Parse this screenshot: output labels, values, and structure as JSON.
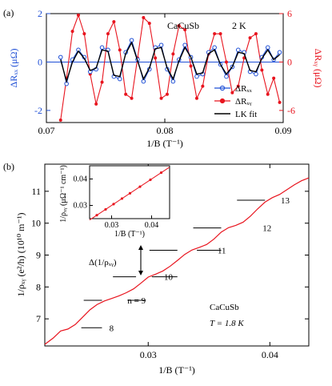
{
  "chart_data": [
    {
      "panel_label": "(a)",
      "type": "line",
      "title": "CaCuSb",
      "annotations": [
        "CaCuSb",
        "2 K"
      ],
      "xlabel": "1/B (T⁻¹)",
      "ylabel_left": "ΔRₓₓ (μΩ)",
      "ylabel_right": "ΔRₓᵧ (μΩ)",
      "xlim": [
        0.07,
        0.09
      ],
      "ylim_left": [
        -2.5,
        2
      ],
      "ylim_right": [
        -7.5,
        6
      ],
      "x_ticks": [
        "0.07",
        "0.08",
        "0.09"
      ],
      "y_ticks_left": [
        "-2",
        "0",
        "2"
      ],
      "y_ticks_right": [
        "-6",
        "0",
        "6"
      ],
      "legend": {
        "placement": "bottom-right",
        "entries": [
          "ΔRₓₓ",
          "ΔRₓᵧ",
          "LK fit"
        ]
      },
      "colors": {
        "rxx": "#1f4fd6",
        "rxy": "#e8141e",
        "fit": "#000000"
      },
      "series": [
        {
          "name": "ΔRxx",
          "axis": "left",
          "x": [
            0.0712,
            0.0717,
            0.0722,
            0.0727,
            0.0732,
            0.0737,
            0.0742,
            0.0747,
            0.0752,
            0.0757,
            0.0762,
            0.0767,
            0.0772,
            0.0777,
            0.0782,
            0.0787,
            0.0792,
            0.0797,
            0.0802,
            0.0807,
            0.0812,
            0.0817,
            0.0822,
            0.0827,
            0.0832,
            0.0837,
            0.0842,
            0.0847,
            0.0852,
            0.0857,
            0.0862,
            0.0867,
            0.0872,
            0.0877,
            0.0882,
            0.0887,
            0.0892,
            0.0897
          ],
          "values": [
            0.2,
            -0.9,
            0.1,
            0.5,
            0.2,
            -0.4,
            -0.3,
            0.6,
            0.5,
            -0.6,
            -0.7,
            0.4,
            0.9,
            0.1,
            -0.8,
            -0.3,
            0.6,
            0.7,
            -0.3,
            -0.8,
            0.1,
            0.7,
            0.2,
            -0.6,
            -0.5,
            0.4,
            0.6,
            -0.1,
            -0.6,
            -0.2,
            0.5,
            0.4,
            -0.4,
            -0.5,
            0.2,
            0.6,
            0.1,
            0.4
          ]
        },
        {
          "name": "LK fit",
          "axis": "left",
          "x": [
            0.0712,
            0.0717,
            0.0722,
            0.0727,
            0.0732,
            0.0737,
            0.0742,
            0.0747,
            0.0752,
            0.0757,
            0.0762,
            0.0767,
            0.0772,
            0.0777,
            0.0782,
            0.0787,
            0.0792,
            0.0797,
            0.0802,
            0.0807,
            0.0812,
            0.0817,
            0.0822,
            0.0827,
            0.0832,
            0.0837,
            0.0842,
            0.0847,
            0.0852,
            0.0857,
            0.0862,
            0.0867,
            0.0872,
            0.0877,
            0.0882,
            0.0887,
            0.0892,
            0.0897
          ],
          "values": [
            0.1,
            -0.8,
            0.0,
            0.45,
            0.15,
            -0.35,
            -0.25,
            0.5,
            0.45,
            -0.55,
            -0.6,
            0.35,
            0.8,
            0.05,
            -0.7,
            -0.25,
            0.55,
            0.6,
            -0.25,
            -0.7,
            0.05,
            0.6,
            0.2,
            -0.5,
            -0.45,
            0.35,
            0.5,
            -0.1,
            -0.5,
            -0.2,
            0.4,
            0.35,
            -0.35,
            -0.4,
            0.15,
            0.5,
            0.1,
            0.3
          ]
        },
        {
          "name": "ΔRxy",
          "axis": "right",
          "x": [
            0.0712,
            0.0717,
            0.0722,
            0.0727,
            0.0732,
            0.0737,
            0.0742,
            0.0747,
            0.0752,
            0.0757,
            0.0762,
            0.0767,
            0.0772,
            0.0777,
            0.0782,
            0.0787,
            0.0792,
            0.0797,
            0.0802,
            0.0807,
            0.0812,
            0.0817,
            0.0822,
            0.0827,
            0.0832,
            0.0837,
            0.0842,
            0.0847,
            0.0852,
            0.0857,
            0.0862,
            0.0867,
            0.0872,
            0.0877,
            0.0882,
            0.0887,
            0.0892,
            0.0897
          ],
          "values": [
            -7.2,
            -2.0,
            3.8,
            5.8,
            3.5,
            -1.5,
            -5.2,
            -2.5,
            3.5,
            5.0,
            1.5,
            -4.0,
            -4.5,
            0.5,
            5.5,
            4.8,
            0.5,
            -4.5,
            -4.0,
            1.0,
            4.5,
            4.0,
            -0.5,
            -4.5,
            -3.0,
            1.0,
            3.5,
            3.5,
            0.0,
            -3.8,
            -3.0,
            0.5,
            3.0,
            3.5,
            -1.0,
            -4.0,
            -2.0,
            -5.0
          ]
        }
      ]
    },
    {
      "panel_label": "(b)",
      "type": "line",
      "annotations": [
        "CaCuSb",
        "T = 1.8 K",
        "Δ(1/ρₓᵧ)"
      ],
      "xlabel": "1/B (T⁻¹)",
      "ylabel": "1/ρₓᵧ (e²/h) (10¹⁰ m⁻¹)",
      "xlim": [
        0.0215,
        0.0432
      ],
      "ylim": [
        6.15,
        11.85
      ],
      "x_ticks": [
        "0.03",
        "0.04"
      ],
      "y_ticks": [
        "7",
        "8",
        "9",
        "10",
        "11"
      ],
      "color": "#e8141e",
      "plateau_labels": [
        "8",
        "n = 9",
        "10",
        "11",
        "12",
        "13"
      ],
      "plateaus": [
        {
          "level": 6.72,
          "x_range": [
            0.0245,
            0.0262
          ],
          "label_x": 0.0268
        },
        {
          "level": 7.58,
          "x_range": [
            0.0247,
            0.0262
          ],
          "label_x": 0.0283
        },
        {
          "level": 8.32,
          "x_range": [
            0.0271,
            0.029
          ],
          "label_x": 0.0313
        },
        {
          "level": 9.15,
          "x_range": [
            0.0301,
            0.0324
          ],
          "label_x": 0.0357
        },
        {
          "level": 9.85,
          "x_range": [
            0.0337,
            0.036
          ],
          "label_x": 0.0394
        },
        {
          "level": 10.72,
          "x_range": [
            0.0373,
            0.0396
          ],
          "label_x": 0.0409
        }
      ],
      "extra_marks": [
        {
          "level": 8.32,
          "x_range": [
            0.0303,
            0.0324
          ]
        },
        {
          "level": 9.15,
          "x_range": [
            0.034,
            0.036
          ]
        },
        {
          "level": 7.58,
          "x_range": [
            0.0283,
            0.0298
          ]
        }
      ],
      "series": [
        {
          "name": "1/ρxy",
          "x": [
            0.0215,
            0.0222,
            0.0228,
            0.0234,
            0.024,
            0.0246,
            0.0252,
            0.0258,
            0.0264,
            0.027,
            0.0276,
            0.0282,
            0.0288,
            0.0294,
            0.03,
            0.0306,
            0.0312,
            0.0318,
            0.0324,
            0.033,
            0.0336,
            0.0342,
            0.0348,
            0.0354,
            0.036,
            0.0366,
            0.0372,
            0.0378,
            0.0384,
            0.039,
            0.0396,
            0.0402,
            0.0408,
            0.0414,
            0.042,
            0.0426,
            0.0432
          ],
          "values": [
            6.2,
            6.4,
            6.62,
            6.68,
            6.82,
            7.05,
            7.28,
            7.45,
            7.56,
            7.64,
            7.72,
            7.82,
            7.94,
            8.12,
            8.31,
            8.4,
            8.5,
            8.65,
            8.83,
            9.02,
            9.16,
            9.24,
            9.33,
            9.5,
            9.72,
            9.86,
            9.93,
            10.03,
            10.22,
            10.45,
            10.66,
            10.8,
            10.9,
            11.05,
            11.2,
            11.33,
            11.42
          ]
        }
      ],
      "inset": {
        "type": "line",
        "xlabel": "1/B (T⁻¹)",
        "ylabel": "1/ρₓᵧ (μΩ⁻¹ cm⁻¹)",
        "xlim": [
          0.0245,
          0.0445
        ],
        "ylim": [
          0.025,
          0.045
        ],
        "x_ticks": [
          "0.03",
          "0.04"
        ],
        "y_ticks": [
          "0.03",
          "0.04"
        ],
        "series": [
          {
            "name": "fit",
            "x": [
              0.0245,
              0.0445
            ],
            "values": [
              0.0245,
              0.0445
            ]
          },
          {
            "name": "points",
            "x": [
              0.0263,
              0.0285,
              0.0305,
              0.0326,
              0.0346,
              0.0371,
              0.0397,
              0.0424
            ],
            "values": [
              0.0263,
              0.0285,
              0.0305,
              0.0326,
              0.0346,
              0.0371,
              0.0397,
              0.0424
            ]
          }
        ]
      }
    }
  ]
}
